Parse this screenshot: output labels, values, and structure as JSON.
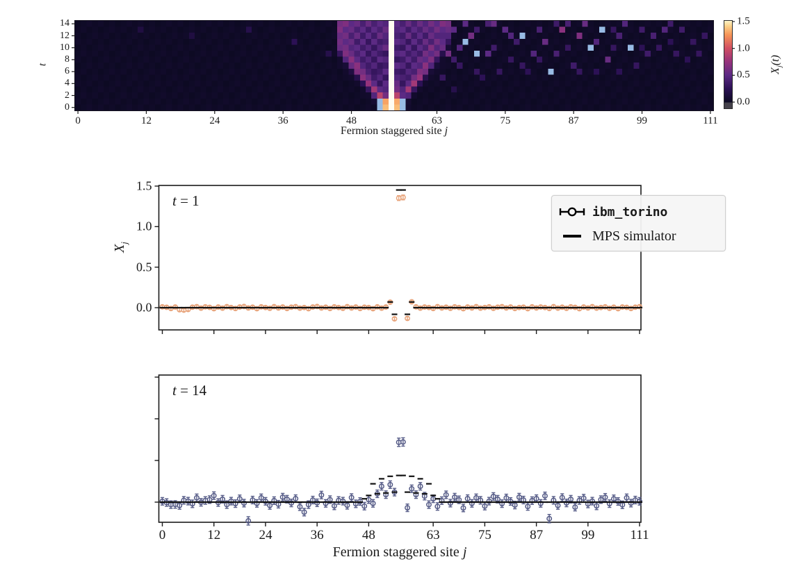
{
  "shared": {
    "xlabel_main": "Fermion staggered site ",
    "xlabel_var": "j",
    "x_tick_values": [
      0,
      12,
      24,
      36,
      48,
      63,
      75,
      87,
      99,
      111
    ],
    "x_tick_labels": [
      "0",
      "12",
      "24",
      "36",
      "48",
      "63",
      "75",
      "87",
      "99",
      "111"
    ]
  },
  "legend": {
    "entries": [
      {
        "label": "ibm_torino",
        "marker": "errorbar-open-circle"
      },
      {
        "label": "MPS simulator",
        "marker": "thick-dash"
      }
    ]
  },
  "chart_data": [
    {
      "type": "heatmap",
      "xlabel": "Fermion staggered site j",
      "ylabel": "t",
      "colorbar_label_parts": {
        "main": "X",
        "sub": "j",
        "suffix": "(t)"
      },
      "colorbar_ticks": {
        "values": [
          0.0,
          0.5,
          1.0,
          1.5
        ],
        "labels": [
          "0.0",
          "0.5",
          "1.0",
          "1.5"
        ]
      },
      "y_ticks": {
        "values": [
          0,
          2,
          4,
          6,
          8,
          10,
          12,
          14
        ],
        "labels": [
          "0",
          "2",
          "4",
          "6",
          "8",
          "10",
          "12",
          "14"
        ]
      },
      "x_range": [
        0,
        111
      ],
      "t_range": [
        0,
        14
      ],
      "vmin": -0.12,
      "vmax": 1.51,
      "baseline": 0.02,
      "cone_j_start": 46,
      "cone": [
        [
          0,
          0,
          0,
          0,
          0,
          0,
          0,
          -0.2,
          1.38,
          1.55,
          1.38,
          -0.2,
          0.05,
          0,
          0,
          0,
          0,
          0,
          0,
          0
        ],
        [
          0,
          0,
          0,
          0,
          0,
          0,
          0.07,
          -0.1,
          1.3,
          1.55,
          1.32,
          -0.1,
          0.07,
          0,
          0,
          0,
          0,
          0,
          0,
          0
        ],
        [
          0,
          0,
          0,
          0,
          0,
          0.05,
          0.45,
          0.9,
          0.6,
          1.55,
          0.9,
          0.5,
          0.45,
          0.05,
          0,
          0,
          0,
          0,
          0,
          0
        ],
        [
          0,
          0,
          0,
          0,
          0.05,
          0.3,
          0.8,
          0.5,
          0.45,
          1.55,
          0.6,
          0.45,
          0.8,
          0.3,
          0.05,
          0,
          0,
          0,
          0,
          0
        ],
        [
          0,
          0,
          0,
          0.05,
          0.25,
          0.75,
          0.5,
          0.3,
          0.5,
          1.55,
          0.55,
          0.3,
          0.5,
          0.8,
          0.25,
          0.05,
          0,
          0,
          0,
          0
        ],
        [
          0,
          0,
          0.05,
          0.2,
          0.7,
          0.55,
          0.35,
          0.45,
          0.3,
          1.55,
          0.45,
          0.4,
          0.35,
          0.6,
          0.75,
          0.2,
          0.05,
          0,
          0,
          0
        ],
        [
          0,
          0.05,
          0.15,
          0.65,
          0.6,
          0.4,
          0.3,
          0.35,
          0.5,
          1.55,
          0.35,
          0.3,
          0.45,
          0.4,
          0.65,
          0.6,
          0.1,
          0.05,
          0,
          0
        ],
        [
          0.05,
          0.1,
          0.55,
          0.7,
          0.45,
          0.35,
          0.45,
          0.3,
          0.35,
          1.55,
          0.5,
          0.45,
          0.3,
          0.5,
          0.45,
          0.7,
          0.45,
          0.1,
          0.05,
          0
        ],
        [
          0.05,
          0.45,
          0.7,
          0.5,
          0.35,
          0.45,
          0.3,
          0.5,
          0.45,
          1.55,
          0.3,
          0.35,
          0.5,
          0.35,
          0.55,
          0.5,
          0.65,
          0.3,
          0.05,
          0
        ],
        [
          0.3,
          0.65,
          0.55,
          0.4,
          0.5,
          0.3,
          0.45,
          0.35,
          0.3,
          1.55,
          0.45,
          0.5,
          0.35,
          0.45,
          0.35,
          0.6,
          0.5,
          0.6,
          0.2,
          0.05
        ],
        [
          0.55,
          0.6,
          0.45,
          0.5,
          0.35,
          0.45,
          0.3,
          0.45,
          0.55,
          1.55,
          0.35,
          0.3,
          0.5,
          0.3,
          0.5,
          0.4,
          0.65,
          0.45,
          0.55,
          0.1
        ],
        [
          0.6,
          0.5,
          0.55,
          0.35,
          0.5,
          0.3,
          0.5,
          0.35,
          0.4,
          1.55,
          0.5,
          0.45,
          0.3,
          0.5,
          0.35,
          0.55,
          0.4,
          0.6,
          0.5,
          0.3
        ],
        [
          0.55,
          0.6,
          0.4,
          0.55,
          0.35,
          0.5,
          0.35,
          0.55,
          0.45,
          1.55,
          0.4,
          0.35,
          0.55,
          0.35,
          0.5,
          0.35,
          0.55,
          0.45,
          0.65,
          0.45
        ],
        [
          0.65,
          0.5,
          0.55,
          0.4,
          0.5,
          0.35,
          0.5,
          0.4,
          0.55,
          1.55,
          0.45,
          0.5,
          0.35,
          0.5,
          0.4,
          0.55,
          0.45,
          0.6,
          0.5,
          0.55
        ],
        [
          0.6,
          0.65,
          0.5,
          0.55,
          0.4,
          0.55,
          0.4,
          0.5,
          0.45,
          1.55,
          0.5,
          0.4,
          0.55,
          0.4,
          0.55,
          0.45,
          0.6,
          0.5,
          0.65,
          0.6
        ]
      ],
      "speckles": [
        [
          63,
          8,
          0.3
        ],
        [
          64,
          12,
          0.45
        ],
        [
          64,
          5,
          0.3
        ],
        [
          65,
          9,
          0.6
        ],
        [
          66,
          13,
          0.5
        ],
        [
          66,
          8,
          0.35
        ],
        [
          66,
          3,
          0.2
        ],
        [
          67,
          7,
          0.3
        ],
        [
          67,
          10,
          0.45
        ],
        [
          68,
          11,
          -0.25
        ],
        [
          68,
          14,
          0.5
        ],
        [
          69,
          12,
          0.6
        ],
        [
          70,
          9,
          -0.3
        ],
        [
          70,
          13,
          0.35
        ],
        [
          70,
          6,
          0.3
        ],
        [
          71,
          5,
          0.25
        ],
        [
          72,
          14,
          0.4
        ],
        [
          72,
          9,
          0.5
        ],
        [
          73,
          10,
          0.35
        ],
        [
          73,
          14,
          0.55
        ],
        [
          74,
          6,
          0.3
        ],
        [
          75,
          13,
          0.5
        ],
        [
          76,
          8,
          0.3
        ],
        [
          76,
          12,
          0.45
        ],
        [
          77,
          11,
          0.35
        ],
        [
          78,
          12,
          -0.25
        ],
        [
          78,
          7,
          0.3
        ],
        [
          79,
          6,
          0.25
        ],
        [
          80,
          9,
          0.45
        ],
        [
          81,
          13,
          0.4
        ],
        [
          81,
          8,
          0.3
        ],
        [
          82,
          11,
          0.55
        ],
        [
          83,
          6,
          -0.2
        ],
        [
          84,
          9,
          0.4
        ],
        [
          84,
          14,
          0.35
        ],
        [
          85,
          13,
          0.7
        ],
        [
          86,
          10,
          0.3
        ],
        [
          86,
          14,
          0.4
        ],
        [
          87,
          7,
          0.35
        ],
        [
          88,
          12,
          0.65
        ],
        [
          88,
          6,
          0.3
        ],
        [
          89,
          14,
          0.55
        ],
        [
          90,
          10,
          -0.25
        ],
        [
          91,
          11,
          0.45
        ],
        [
          91,
          6,
          0.25
        ],
        [
          92,
          13,
          -0.3
        ],
        [
          93,
          8,
          0.55
        ],
        [
          94,
          10,
          0.3
        ],
        [
          94,
          13,
          0.3
        ],
        [
          95,
          12,
          0.4
        ],
        [
          95,
          6,
          0.25
        ],
        [
          96,
          14,
          0.45
        ],
        [
          97,
          10,
          -0.25
        ],
        [
          98,
          7,
          0.3
        ],
        [
          99,
          13,
          0.35
        ],
        [
          99,
          10,
          0.25
        ],
        [
          100,
          9,
          0.35
        ],
        [
          101,
          12,
          0.4
        ],
        [
          102,
          10,
          0.3
        ],
        [
          103,
          13,
          0.45
        ],
        [
          104,
          11,
          0.25
        ],
        [
          104,
          14,
          0.35
        ],
        [
          105,
          9,
          0.3
        ],
        [
          106,
          13,
          0.35
        ],
        [
          107,
          8,
          0.25
        ],
        [
          108,
          11,
          0.3
        ],
        [
          109,
          9,
          0.3
        ],
        [
          110,
          12,
          0.3
        ],
        [
          30,
          13,
          0.2
        ],
        [
          38,
          11,
          0.25
        ],
        [
          20,
          12,
          0.15
        ],
        [
          44,
          9,
          0.2
        ],
        [
          11,
          13,
          0.15
        ]
      ]
    },
    {
      "type": "scatter",
      "annotation": {
        "var": "t",
        "rest": " = 1"
      },
      "ylabel_parts": {
        "main": "X",
        "sub": "j"
      },
      "ylim": [
        -0.27,
        1.51
      ],
      "y_ticks": {
        "values": [
          0.0,
          0.5,
          1.0,
          1.5
        ],
        "labels": [
          "0.0",
          "0.5",
          "1.0",
          "1.5"
        ]
      },
      "series": {
        "ibm": {
          "name": "ibm_torino",
          "color": "#e8a57d",
          "err_default": 0.018,
          "err_overrides": {
            "55": 0.03,
            "56": 0.03
          },
          "values": [
            0.01,
            0.005,
            -0.01,
            0.008,
            -0.025,
            -0.03,
            -0.022,
            0.006,
            0.012,
            -0.006,
            0.01,
            0.004,
            -0.012,
            0.008,
            -0.006,
            0.012,
            0.002,
            -0.01,
            0.008,
            0.014,
            -0.004,
            0.006,
            -0.012,
            0.01,
            0.002,
            -0.008,
            0.012,
            -0.004,
            0.008,
            -0.01,
            0.006,
            0.012,
            -0.006,
            0.002,
            -0.012,
            0.008,
            0.014,
            -0.004,
            0.006,
            -0.01,
            0.01,
            0.002,
            -0.008,
            0.012,
            -0.004,
            0.008,
            -0.01,
            0.006,
            0.002,
            -0.012,
            0.01,
            -0.006,
            0.008,
            0.068,
            -0.138,
            1.352,
            1.36,
            -0.132,
            0.072,
            0.01,
            -0.006,
            0.008,
            0.002,
            -0.01,
            0.012,
            -0.004,
            0.006,
            -0.008,
            0.01,
            0.002,
            -0.012,
            0.008,
            -0.004,
            0.012,
            -0.006,
            0.002,
            0.01,
            -0.008,
            0.006,
            0.012,
            -0.004,
            0.008,
            -0.01,
            0.002,
            0.006,
            -0.012,
            0.01,
            -0.004,
            0.008,
            0.002,
            -0.01,
            0.012,
            -0.006,
            0.006,
            -0.008,
            0.01,
            0.004,
            -0.012,
            0.008,
            -0.004,
            0.012,
            -0.006,
            0.002,
            0.01,
            -0.008,
            0.006,
            -0.012,
            0.008,
            0.004,
            -0.01,
            0.006,
            0.012
          ]
        },
        "mps": {
          "name": "MPS simulator",
          "color": "#111111",
          "default": 0,
          "overrides": {
            "53": 0.07,
            "54": -0.082,
            "55": 1.452,
            "56": 1.452,
            "57": -0.082,
            "58": 0.07
          }
        }
      }
    },
    {
      "type": "scatter",
      "annotation": {
        "var": "t",
        "rest": " = 14"
      },
      "ylim": [
        -0.24,
        1.52
      ],
      "y_ticks": {
        "values": [
          0.0,
          0.5,
          1.0,
          1.5
        ],
        "labels": [
          "",
          "",
          "",
          ""
        ]
      },
      "series": {
        "ibm": {
          "name": "ibm_torino",
          "color": "#545a86",
          "err_default": 0.045,
          "err_overrides": {
            "20": 0.05,
            "55": 0.05,
            "56": 0.05,
            "90": 0.05
          },
          "values": [
            0.01,
            -0.005,
            -0.03,
            -0.028,
            -0.04,
            0.022,
            0.012,
            -0.02,
            0.052,
            -0.002,
            0.02,
            0.03,
            0.078,
            -0.005,
            0.035,
            -0.03,
            0.012,
            -0.018,
            0.04,
            -0.012,
            -0.225,
            0.025,
            -0.015,
            0.052,
            0.01,
            -0.04,
            0.018,
            -0.025,
            0.06,
            0.035,
            -0.01,
            0.042,
            -0.055,
            -0.12,
            -0.03,
            0.025,
            -0.008,
            0.085,
            -0.015,
            0.03,
            -0.045,
            0.02,
            0.012,
            -0.038,
            0.055,
            -0.02,
            0.008,
            -0.048,
            0.03,
            -0.015,
            0.1,
            0.19,
            0.09,
            0.21,
            0.12,
            0.718,
            0.722,
            -0.068,
            0.16,
            0.09,
            0.19,
            0.072,
            -0.03,
            0.04,
            -0.052,
            0.018,
            0.088,
            -0.012,
            0.06,
            0.028,
            -0.07,
            0.042,
            -0.015,
            0.052,
            0.022,
            -0.048,
            0.012,
            0.068,
            0.035,
            -0.018,
            0.05,
            0.008,
            -0.035,
            0.06,
            0.025,
            -0.052,
            0.018,
            0.042,
            -0.015,
            0.075,
            -0.198,
            0.022,
            -0.04,
            0.055,
            -0.01,
            0.035,
            -0.06,
            0.02,
            0.048,
            -0.022,
            0.012,
            -0.045,
            0.03,
            0.058,
            -0.018,
            0.04,
            0.008,
            -0.032,
            0.052,
            -0.012,
            0.025,
            0.01
          ]
        },
        "mps": {
          "name": "MPS simulator",
          "color": "#111111",
          "default": 0,
          "overrides": {
            "47": 0.04,
            "48": 0.08,
            "49": 0.22,
            "50": 0.1,
            "51": 0.28,
            "52": 0.11,
            "53": 0.31,
            "54": 0.12,
            "55": 0.32,
            "56": 0.32,
            "57": 0.12,
            "58": 0.31,
            "59": 0.11,
            "60": 0.28,
            "61": 0.1,
            "62": 0.22,
            "63": 0.08,
            "64": 0.04
          }
        }
      }
    }
  ]
}
